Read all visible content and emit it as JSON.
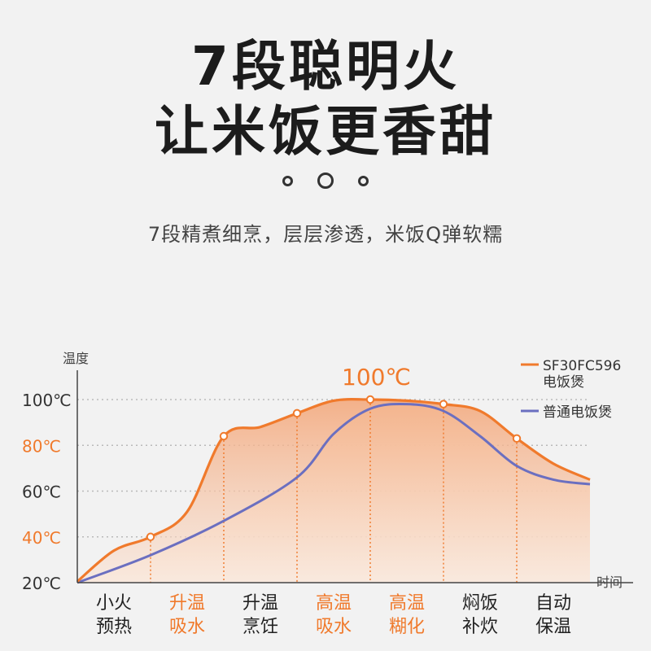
{
  "headline": {
    "line1": "7段聪明火",
    "line2": "让米饭更香甜"
  },
  "subtitle": "7段精煮细烹，层层渗透，米饭Q弹软糯",
  "colors": {
    "accent": "#f07a2c",
    "blue": "#6b6fc0",
    "tick_gray": "#333333"
  },
  "chart_data": {
    "type": "line",
    "ylabel": "温度",
    "xlabel": "时间",
    "ylim": [
      20,
      100
    ],
    "yticks": [
      {
        "label": "100℃",
        "value": 100,
        "highlight": false
      },
      {
        "label": "80℃",
        "value": 80,
        "highlight": true
      },
      {
        "label": "60℃",
        "value": 60,
        "highlight": false
      },
      {
        "label": "40℃",
        "value": 40,
        "highlight": true
      },
      {
        "label": "20℃",
        "value": 20,
        "highlight": false
      }
    ],
    "categories": [
      {
        "line1": "小火",
        "line2": "预热",
        "highlight": false
      },
      {
        "line1": "升温",
        "line2": "吸水",
        "highlight": true
      },
      {
        "line1": "升温",
        "line2": "烹饪",
        "highlight": false
      },
      {
        "line1": "高温",
        "line2": "吸水",
        "highlight": true
      },
      {
        "line1": "高温",
        "line2": "糊化",
        "highlight": true
      },
      {
        "line1": "焖饭",
        "line2": "补炊",
        "highlight": false
      },
      {
        "line1": "自动",
        "line2": "保温",
        "highlight": false
      }
    ],
    "peak_annotation": "100℃",
    "series": [
      {
        "name": "SF30FC596",
        "name_line2": "电饭煲",
        "color": "#f07a2c",
        "x": [
          0,
          0.5,
          1,
          1.5,
          2,
          2.5,
          3,
          3.5,
          4,
          4.5,
          5,
          5.5,
          6,
          6.5,
          7
        ],
        "y": [
          20.5,
          34,
          40,
          51,
          84,
          88,
          94,
          99.5,
          100,
          99.5,
          98,
          95,
          83,
          72,
          65
        ],
        "markers": [
          1,
          2,
          3,
          4,
          5,
          6
        ]
      },
      {
        "name": "普通电饭煲",
        "color": "#6b6fc0",
        "x": [
          0,
          1,
          2,
          3,
          3.5,
          4,
          4.5,
          5,
          5.5,
          6,
          6.5,
          7
        ],
        "y": [
          20,
          32,
          47,
          66,
          85,
          96,
          98,
          95,
          84,
          71,
          65,
          63
        ]
      }
    ]
  }
}
